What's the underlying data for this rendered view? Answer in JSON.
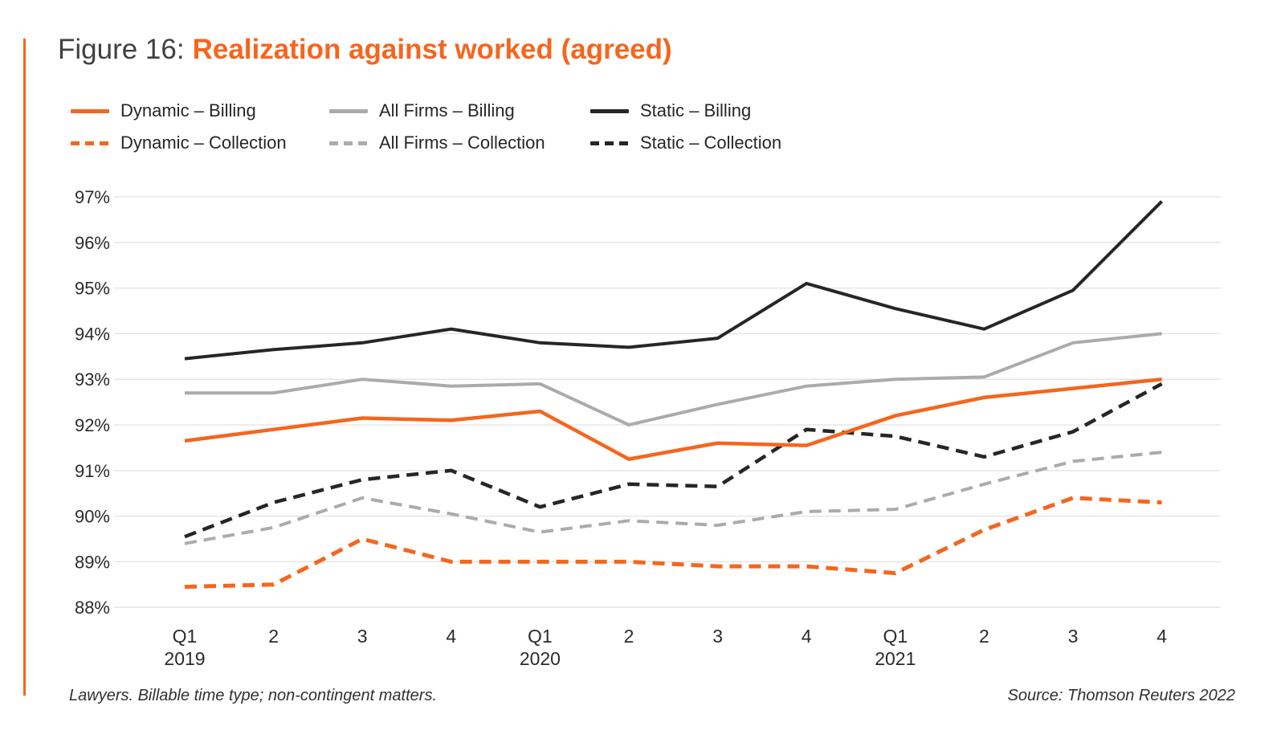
{
  "title": {
    "prefix": "Figure 16:",
    "text": "Realization against worked (agreed)"
  },
  "footer": {
    "left": "Lawyers. Billable time type; non-contingent matters.",
    "right": "Source: Thomson Reuters 2022"
  },
  "colors": {
    "orange": "#F4661E",
    "gray": "#ABABAB",
    "black": "#262626",
    "grid": "#E2E2E2",
    "title_prefix": "#404040"
  },
  "chart_data": {
    "type": "line",
    "title": "Realization against worked (agreed)",
    "categories": [
      "Q1",
      "2",
      "3",
      "4",
      "Q1",
      "2",
      "3",
      "4",
      "Q1",
      "2",
      "3",
      "4"
    ],
    "year_labels": [
      {
        "index": 0,
        "label": "2019"
      },
      {
        "index": 4,
        "label": "2020"
      },
      {
        "index": 8,
        "label": "2021"
      }
    ],
    "ylim": [
      88,
      97
    ],
    "ytick_step": 1,
    "ytick_suffix": "%",
    "grid": "horizontal",
    "legend_position": "top-left",
    "series": [
      {
        "name": "Dynamic – Billing",
        "color": "#F4661E",
        "dash": false,
        "values": [
          91.65,
          91.9,
          92.15,
          92.1,
          92.3,
          91.25,
          91.6,
          91.55,
          92.2,
          92.6,
          92.8,
          93.0
        ]
      },
      {
        "name": "All Firms – Billing",
        "color": "#ABABAB",
        "dash": false,
        "values": [
          92.7,
          92.7,
          93.0,
          92.85,
          92.9,
          92.0,
          92.45,
          92.85,
          93.0,
          93.05,
          93.8,
          94.0
        ]
      },
      {
        "name": "Static – Billing",
        "color": "#262626",
        "dash": false,
        "values": [
          93.45,
          93.65,
          93.8,
          94.1,
          93.8,
          93.7,
          93.9,
          95.1,
          94.55,
          94.1,
          94.95,
          96.9
        ]
      },
      {
        "name": "Dynamic – Collection",
        "color": "#F4661E",
        "dash": true,
        "values": [
          88.45,
          88.5,
          89.5,
          89.0,
          89.0,
          89.0,
          88.9,
          88.9,
          88.75,
          89.7,
          90.4,
          90.3
        ]
      },
      {
        "name": "All Firms – Collection",
        "color": "#ABABAB",
        "dash": true,
        "values": [
          89.4,
          89.75,
          90.4,
          90.05,
          89.65,
          89.9,
          89.8,
          90.1,
          90.15,
          90.7,
          91.2,
          91.4
        ]
      },
      {
        "name": "Static – Collection",
        "color": "#262626",
        "dash": true,
        "values": [
          89.55,
          90.3,
          90.8,
          91.0,
          90.2,
          90.7,
          90.65,
          91.9,
          91.75,
          91.3,
          91.85,
          92.9
        ]
      }
    ]
  }
}
